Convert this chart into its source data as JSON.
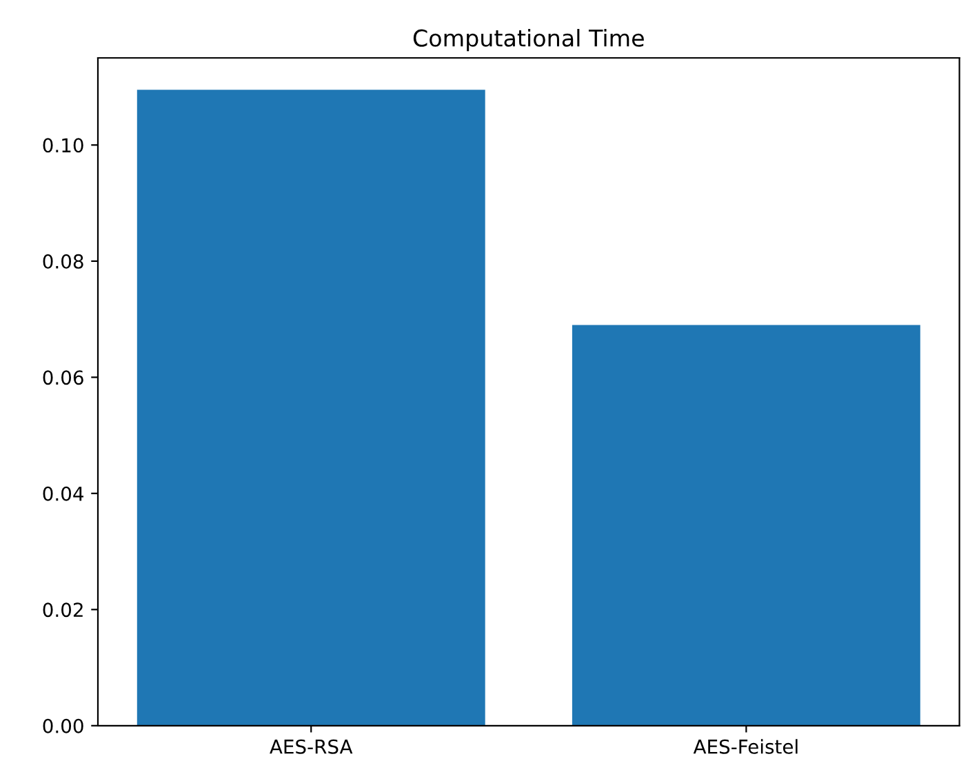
{
  "chart_data": {
    "type": "bar",
    "title": "Computational Time",
    "categories": [
      "AES-RSA",
      "AES-Feistel"
    ],
    "values": [
      0.1095,
      0.069
    ],
    "color": "#1f77b4",
    "ylim": [
      0,
      0.115
    ],
    "yticks": [
      {
        "value": 0,
        "label": "0.00"
      },
      0.02,
      0.04,
      0.06,
      0.08,
      {
        "value": 0.1,
        "label": "0.10"
      }
    ],
    "grid": false,
    "legend": false
  }
}
